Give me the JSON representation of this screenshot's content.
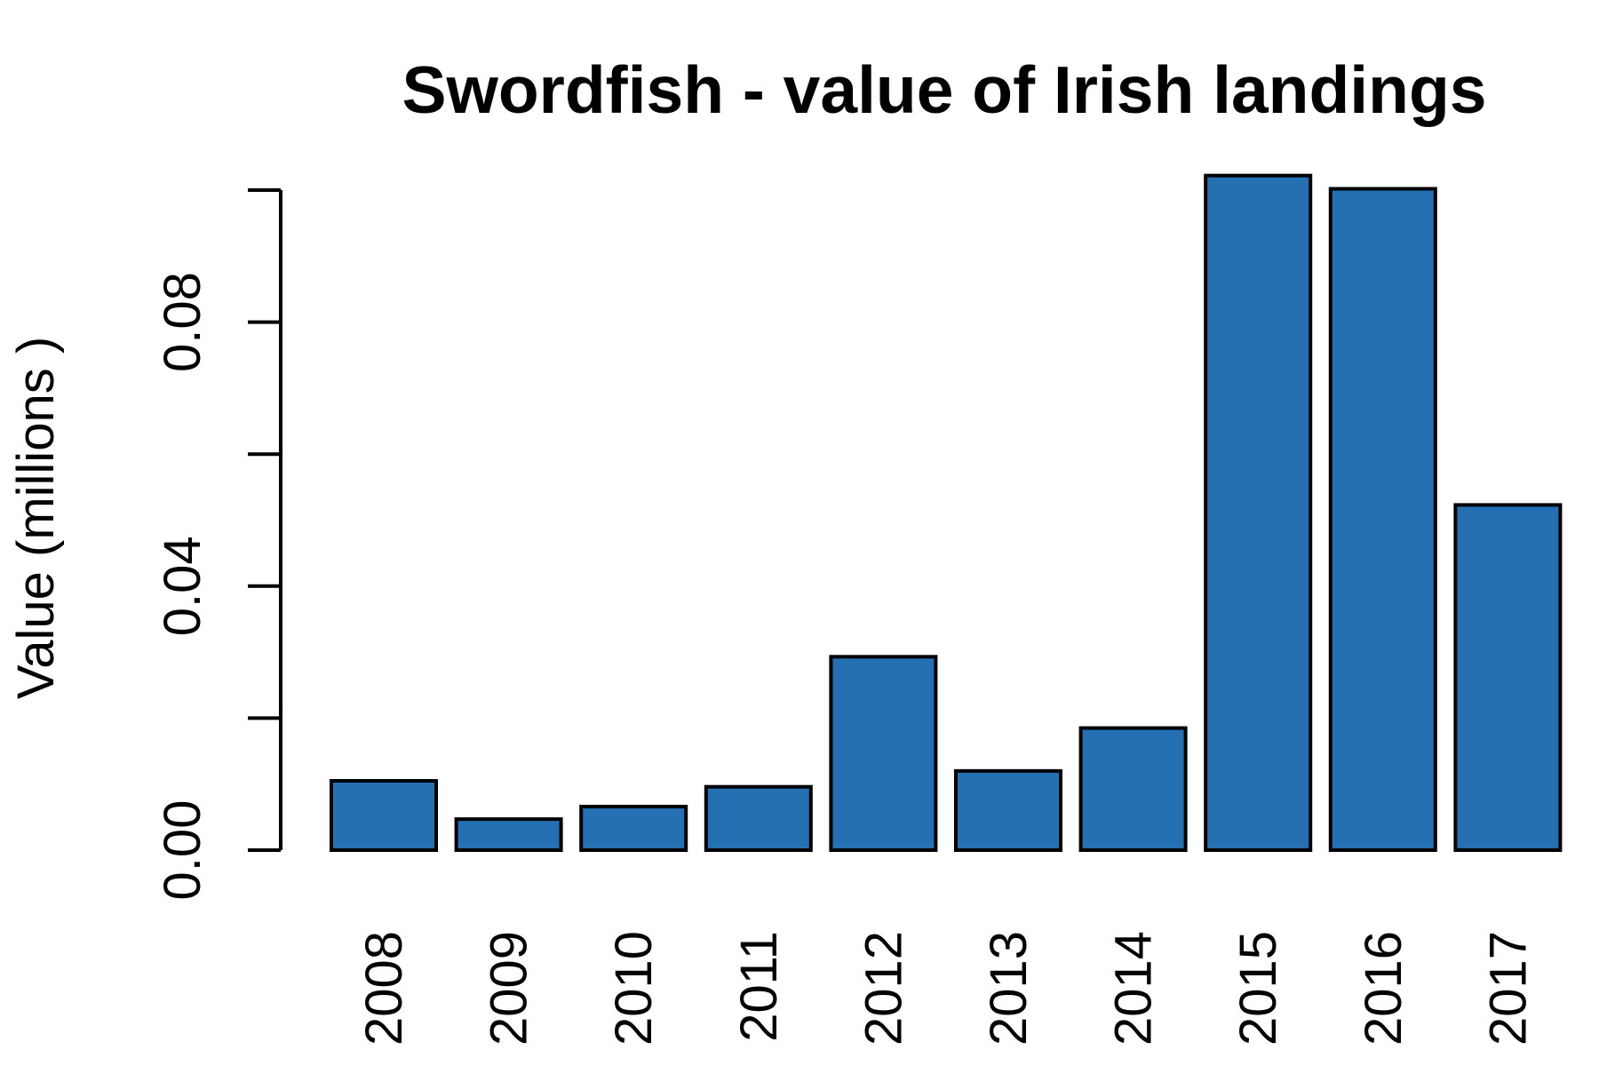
{
  "chart_data": {
    "type": "bar",
    "title": "Swordfish - value of Irish landings",
    "xlabel": "",
    "ylabel": "Value (millions )",
    "categories": [
      "2008",
      "2009",
      "2010",
      "2011",
      "2012",
      "2013",
      "2014",
      "2015",
      "2016",
      "2017"
    ],
    "values": [
      0.0105,
      0.0047,
      0.0066,
      0.0096,
      0.0293,
      0.012,
      0.0185,
      0.1022,
      0.1002,
      0.0523
    ],
    "ylim": [
      0,
      0.1
    ],
    "yticks": [
      0.0,
      0.02,
      0.04,
      0.06,
      0.08,
      0.1
    ],
    "ytick_labels": [
      "0.00",
      "",
      "0.04",
      "",
      "0.08",
      ""
    ],
    "bar_color": "#2470B3",
    "grid": false,
    "legend": "none"
  }
}
